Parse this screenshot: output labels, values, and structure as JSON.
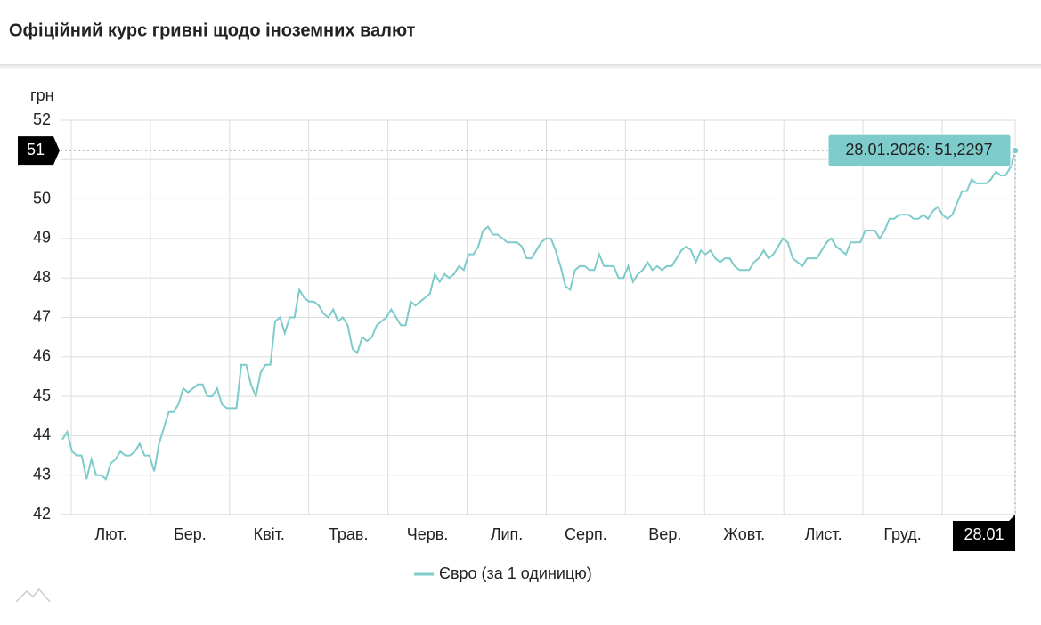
{
  "chart_data": {
    "type": "line",
    "title": "Офіційний курс гривні щодо іноземних валют",
    "y_unit": "грн",
    "ylim": [
      42,
      52
    ],
    "yticks": [
      42,
      43,
      44,
      45,
      46,
      47,
      48,
      49,
      50,
      51,
      52
    ],
    "grid": true,
    "month_labels": [
      "Лют.",
      "Бер.",
      "Квіт.",
      "Трав.",
      "Черв.",
      "Лип.",
      "Серп.",
      "Вер.",
      "Жовт.",
      "Лист.",
      "Груд."
    ],
    "series": [
      {
        "name": "Євро (за 1 одиницю)",
        "color": "#7ecbcb",
        "values": [
          43.9,
          44.1,
          43.6,
          43.5,
          43.5,
          42.9,
          43.4,
          43.0,
          43.0,
          42.9,
          43.3,
          43.4,
          43.6,
          43.5,
          43.5,
          43.6,
          43.8,
          43.5,
          43.5,
          43.1,
          43.8,
          44.2,
          44.6,
          44.6,
          44.8,
          45.2,
          45.1,
          45.2,
          45.3,
          45.3,
          45.0,
          45.0,
          45.2,
          44.8,
          44.7,
          44.7,
          44.7,
          45.8,
          45.8,
          45.3,
          45.0,
          45.6,
          45.8,
          45.8,
          46.9,
          47.0,
          46.6,
          47.0,
          47.0,
          47.7,
          47.5,
          47.4,
          47.4,
          47.3,
          47.1,
          47.0,
          47.2,
          46.9,
          47.0,
          46.8,
          46.2,
          46.1,
          46.5,
          46.4,
          46.5,
          46.8,
          46.9,
          47.0,
          47.2,
          47.0,
          46.8,
          46.8,
          47.4,
          47.3,
          47.4,
          47.5,
          47.6,
          48.1,
          47.9,
          48.1,
          48.0,
          48.1,
          48.3,
          48.2,
          48.6,
          48.6,
          48.8,
          49.2,
          49.3,
          49.1,
          49.1,
          49.0,
          48.9,
          48.9,
          48.9,
          48.8,
          48.5,
          48.5,
          48.7,
          48.9,
          49.0,
          49.0,
          48.7,
          48.3,
          47.8,
          47.7,
          48.2,
          48.3,
          48.3,
          48.2,
          48.2,
          48.6,
          48.3,
          48.3,
          48.3,
          48.0,
          48.0,
          48.3,
          47.9,
          48.1,
          48.2,
          48.4,
          48.2,
          48.3,
          48.2,
          48.3,
          48.3,
          48.5,
          48.7,
          48.8,
          48.7,
          48.4,
          48.7,
          48.6,
          48.7,
          48.5,
          48.4,
          48.5,
          48.5,
          48.3,
          48.2,
          48.2,
          48.2,
          48.4,
          48.5,
          48.7,
          48.5,
          48.6,
          48.8,
          49.0,
          48.9,
          48.5,
          48.4,
          48.3,
          48.5,
          48.5,
          48.5,
          48.7,
          48.9,
          49.0,
          48.8,
          48.7,
          48.6,
          48.9,
          48.9,
          48.9,
          49.2,
          49.2,
          49.2,
          49.0,
          49.2,
          49.5,
          49.5,
          49.6,
          49.6,
          49.6,
          49.5,
          49.5,
          49.6,
          49.5,
          49.7,
          49.8,
          49.6,
          49.5,
          49.6,
          49.9,
          50.2,
          50.2,
          50.5,
          50.4,
          50.4,
          50.4,
          50.5,
          50.7,
          50.6,
          50.6,
          50.8,
          51.2297
        ]
      }
    ],
    "highlight": {
      "value": 51.2297,
      "label": "28.01.2026: 51,2297",
      "y_label": "51",
      "x_label": "28.01"
    }
  }
}
